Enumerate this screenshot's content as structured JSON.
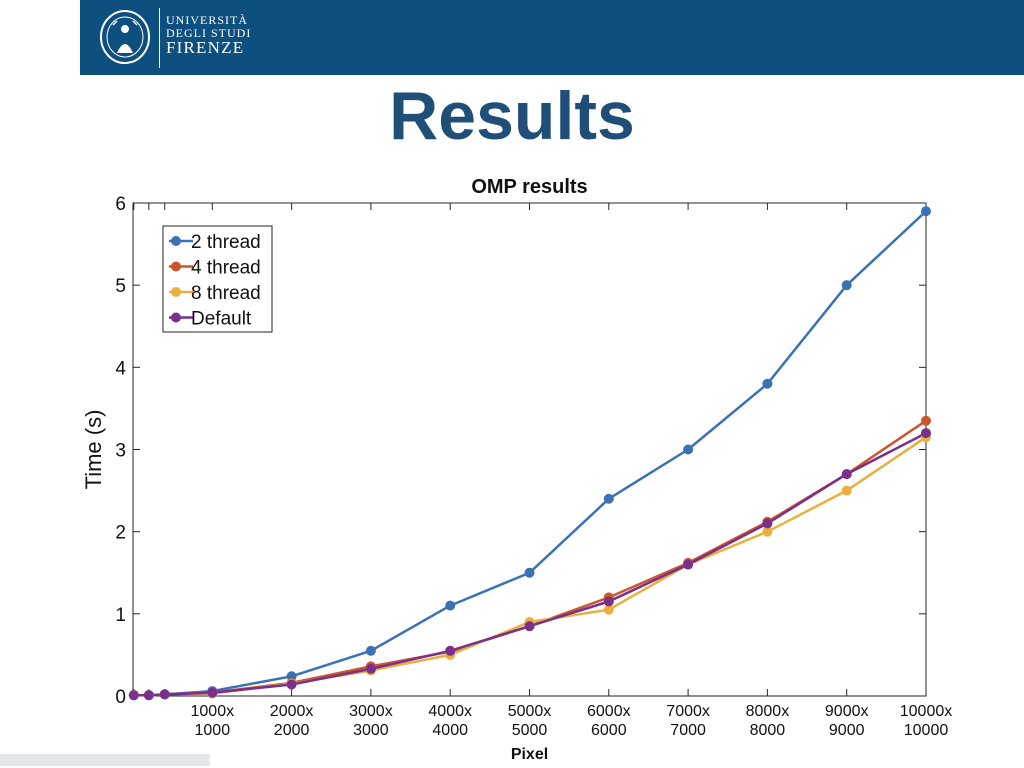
{
  "header": {
    "band_color": "#0d4f7e",
    "logo": {
      "line1": "UNIVERSITÀ",
      "line2": "DEGLI STUDI",
      "line3": "FIRENZE",
      "seal_icon": "florence-seal-icon"
    }
  },
  "slide": {
    "title": "Results",
    "title_color": "#1f4e79"
  },
  "chart_data": {
    "type": "line",
    "title": "OMP results",
    "xlabel": "Pixel",
    "ylabel": "Time (s)",
    "xlim": [
      0,
      10000
    ],
    "ylim": [
      0,
      6
    ],
    "yticks": [
      0,
      1,
      2,
      3,
      4,
      5,
      6
    ],
    "x": [
      10,
      200,
      400,
      1000,
      2000,
      3000,
      4000,
      5000,
      6000,
      7000,
      8000,
      9000,
      10000
    ],
    "xtick_values": [
      1000,
      2000,
      3000,
      4000,
      5000,
      6000,
      7000,
      8000,
      9000,
      10000
    ],
    "xtick_labels": [
      [
        "1000x",
        "1000"
      ],
      [
        "2000x",
        "2000"
      ],
      [
        "3000x",
        "3000"
      ],
      [
        "4000x",
        "4000"
      ],
      [
        "5000x",
        "5000"
      ],
      [
        "6000x",
        "6000"
      ],
      [
        "7000x",
        "7000"
      ],
      [
        "8000x",
        "8000"
      ],
      [
        "9000x",
        "9000"
      ],
      [
        "10000x",
        "10000"
      ]
    ],
    "grid": false,
    "legend_position": "top-left",
    "series": [
      {
        "name": "2 thread",
        "color": "#3a72b5",
        "values": [
          0.01,
          0.01,
          0.02,
          0.06,
          0.24,
          0.55,
          1.1,
          1.5,
          2.4,
          3.0,
          3.8,
          5.0,
          5.9
        ]
      },
      {
        "name": "4 thread",
        "color": "#c9572a",
        "values": [
          0.01,
          0.01,
          0.02,
          0.04,
          0.16,
          0.36,
          0.54,
          0.85,
          1.2,
          1.62,
          2.12,
          2.7,
          3.35
        ]
      },
      {
        "name": "8 thread",
        "color": "#e9b03d",
        "values": [
          0.01,
          0.01,
          0.02,
          0.03,
          0.15,
          0.31,
          0.5,
          0.9,
          1.05,
          1.6,
          2.0,
          2.5,
          3.15
        ]
      },
      {
        "name": "Default",
        "color": "#7a2f8d",
        "values": [
          0.01,
          0.01,
          0.02,
          0.04,
          0.14,
          0.33,
          0.55,
          0.85,
          1.15,
          1.6,
          2.1,
          2.7,
          3.2
        ]
      }
    ]
  }
}
